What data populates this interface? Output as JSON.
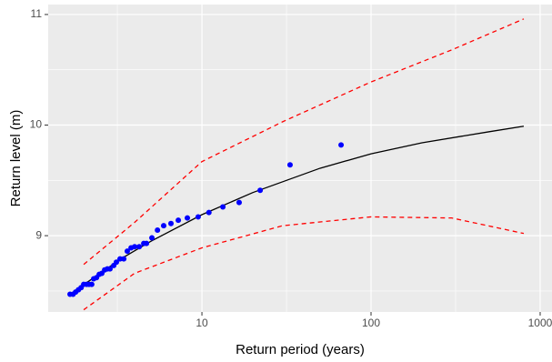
{
  "chart_data": {
    "type": "scatter",
    "x_label": "Return period (years)",
    "y_label": "Return level (m)",
    "xlim": [
      1.233,
      1175
    ],
    "ylim": [
      8.31,
      11.09
    ],
    "x_log": true,
    "xticks": [
      10,
      100,
      1000
    ],
    "yticks": [
      9,
      10,
      11
    ],
    "grid": true,
    "series": [
      {
        "style": "points",
        "color": "#0000ff",
        "x": [
          1.66,
          1.73,
          1.79,
          1.86,
          1.93,
          2.0,
          2.08,
          2.15,
          2.23,
          2.29,
          2.38,
          2.47,
          2.56,
          2.66,
          2.76,
          2.86,
          3.01,
          3.12,
          3.28,
          3.45,
          3.62,
          3.81,
          4.0,
          4.26,
          4.53,
          4.7,
          5.06,
          5.46,
          5.94,
          6.56,
          7.25,
          8.2,
          9.5,
          11.0,
          13.3,
          16.6,
          22.1,
          33.2,
          66.5
        ],
        "values": [
          8.47,
          8.47,
          8.49,
          8.51,
          8.53,
          8.56,
          8.56,
          8.56,
          8.56,
          8.61,
          8.62,
          8.65,
          8.66,
          8.69,
          8.7,
          8.7,
          8.73,
          8.76,
          8.79,
          8.79,
          8.86,
          8.89,
          8.9,
          8.9,
          8.93,
          8.93,
          8.98,
          9.05,
          9.09,
          9.11,
          9.14,
          9.16,
          9.17,
          9.21,
          9.26,
          9.3,
          9.41,
          9.64,
          9.82
        ]
      },
      {
        "style": "line",
        "color": "#000000",
        "x": [
          1.66,
          2.5,
          3.4,
          5,
          10,
          20,
          50,
          100,
          200,
          500,
          800
        ],
        "values": [
          8.47,
          8.66,
          8.8,
          8.95,
          9.19,
          9.39,
          9.61,
          9.74,
          9.84,
          9.94,
          9.99
        ]
      },
      {
        "style": "dashed",
        "color": "#ff0000",
        "x": [
          2,
          4,
          10,
          30,
          100,
          300,
          800
        ],
        "values": [
          8.74,
          9.12,
          9.67,
          10.03,
          10.39,
          10.68,
          10.96
        ]
      },
      {
        "style": "dashed",
        "color": "#ff0000",
        "x": [
          2,
          4,
          10,
          30,
          100,
          300,
          800
        ],
        "values": [
          8.33,
          8.66,
          8.89,
          9.09,
          9.17,
          9.16,
          9.02
        ]
      }
    ]
  }
}
